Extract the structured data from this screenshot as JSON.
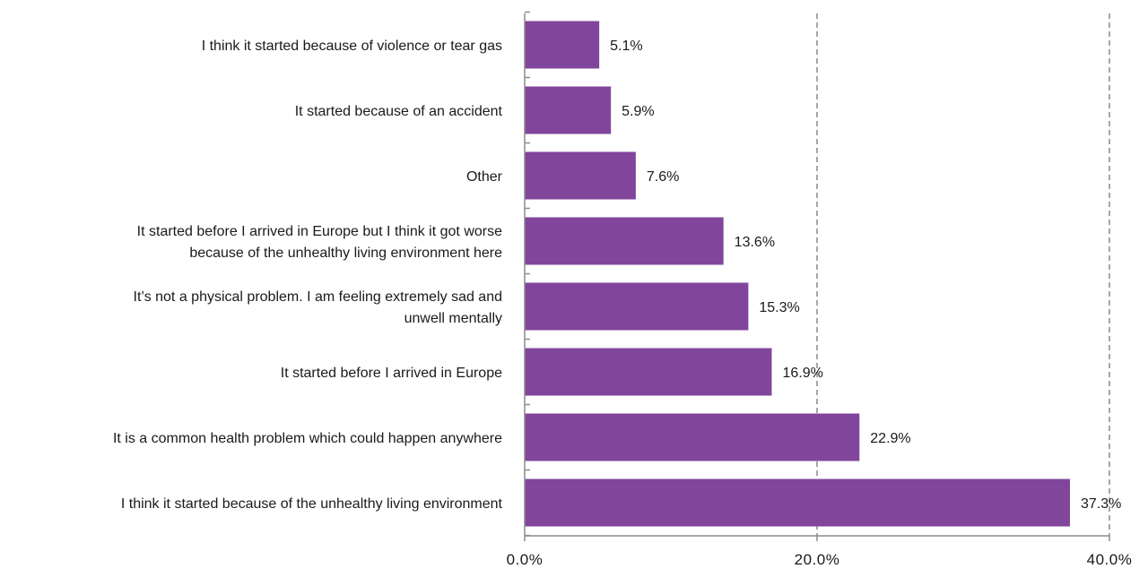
{
  "chart_data": {
    "type": "bar",
    "orientation": "horizontal",
    "categories": [
      [
        "I think it started because of violence or tear gas"
      ],
      [
        "It started because of an accident"
      ],
      [
        "Other"
      ],
      [
        "It started before I arrived in Europe but I think it got worse",
        "because of the unhealthy living environment here"
      ],
      [
        "It’s not a physical problem. I am feeling extremely sad and",
        "unwell mentally"
      ],
      [
        "It started before I arrived in Europe"
      ],
      [
        "It is a common health problem which could happen anywhere"
      ],
      [
        "I think it started because of the unhealthy living environment"
      ]
    ],
    "values": [
      5.1,
      5.9,
      7.6,
      13.6,
      15.3,
      16.9,
      22.9,
      37.3
    ],
    "value_labels": [
      "5.1%",
      "5.9%",
      "7.6%",
      "13.6%",
      "15.3%",
      "16.9%",
      "22.9%",
      "37.3%"
    ],
    "xlim": [
      0,
      40
    ],
    "x_ticks": [
      0,
      20,
      40
    ],
    "x_tick_labels": [
      "0.0%",
      "20.0%",
      "40.0%"
    ],
    "grid": "vertical-dashed",
    "title": "",
    "xlabel": "",
    "ylabel": "",
    "colors": {
      "bar": "#81469b",
      "axis": "#8c8c8c",
      "grid": "#888888",
      "text": "#1a1a1a"
    }
  }
}
